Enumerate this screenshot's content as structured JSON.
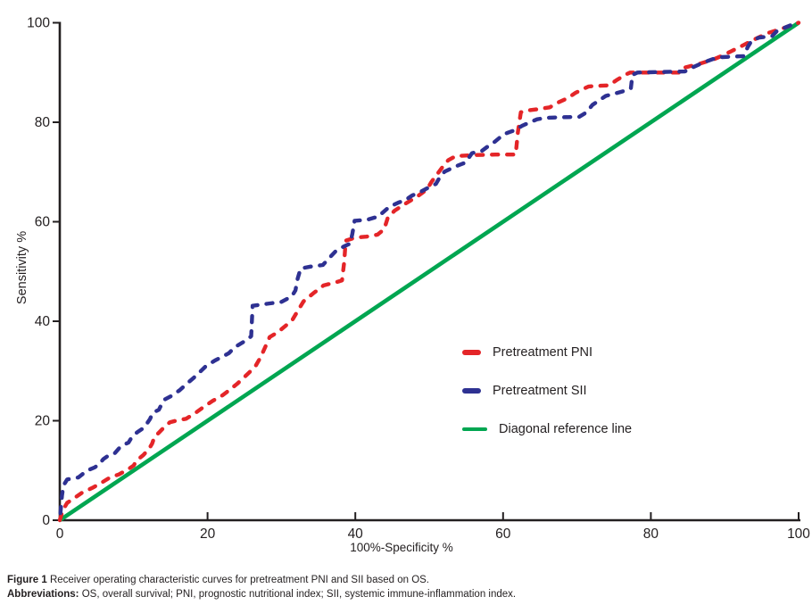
{
  "figure": {
    "caption": {
      "label": "Figure 1",
      "text": "Receiver operating characteristic curves for pretreatment PNI and SII based on OS."
    },
    "abbreviations": {
      "label": "Abbreviations:",
      "text": "OS, overall survival; PNI, prognostic nutritional index; SII, systemic immune-inflammation index."
    }
  },
  "chart_data": {
    "type": "line",
    "title": "",
    "xlabel": "100%-Specificity %",
    "ylabel": "Sensitivity %",
    "xlim": [
      0,
      100
    ],
    "ylim": [
      0,
      100
    ],
    "x_ticks": [
      0,
      20,
      40,
      60,
      80,
      100
    ],
    "y_ticks": [
      0,
      20,
      40,
      60,
      80,
      100
    ],
    "grid": false,
    "axis_color": "#231f20",
    "legend_position": "right-middle",
    "series": [
      {
        "name": "Pretreatment PNI",
        "color": "#e42528",
        "style": "dashed",
        "points": [
          [
            0,
            0
          ],
          [
            0.4,
            2
          ],
          [
            1,
            3.5
          ],
          [
            2,
            4.5
          ],
          [
            3,
            5.5
          ],
          [
            4.4,
            6.5
          ],
          [
            5.6,
            7.5
          ],
          [
            6.8,
            8.6
          ],
          [
            8,
            9.2
          ],
          [
            9.2,
            10.2
          ],
          [
            10,
            11
          ],
          [
            10.4,
            12
          ],
          [
            11.3,
            13.1
          ],
          [
            12.1,
            14.4
          ],
          [
            12.5,
            15.4
          ],
          [
            12.8,
            16.7
          ],
          [
            13.4,
            17.6
          ],
          [
            14,
            18.5
          ],
          [
            14.9,
            19.7
          ],
          [
            16,
            20.1
          ],
          [
            17.1,
            20.4
          ],
          [
            18.3,
            21.5
          ],
          [
            19.5,
            22.8
          ],
          [
            20.7,
            24
          ],
          [
            22,
            25.1
          ],
          [
            23,
            26.2
          ],
          [
            24,
            27.4
          ],
          [
            24.8,
            28.5
          ],
          [
            25.7,
            29.8
          ],
          [
            26.5,
            31
          ],
          [
            27.2,
            32.8
          ],
          [
            27.8,
            34.8
          ],
          [
            28.4,
            36.8
          ],
          [
            29.5,
            37.8
          ],
          [
            30.5,
            39
          ],
          [
            31.5,
            40.3
          ],
          [
            32.3,
            42.3
          ],
          [
            33,
            44
          ],
          [
            34.3,
            45.6
          ],
          [
            35.7,
            47.2
          ],
          [
            37.3,
            47.8
          ],
          [
            38.2,
            48.2
          ],
          [
            38.5,
            52
          ],
          [
            38.7,
            56.2
          ],
          [
            40,
            56.8
          ],
          [
            41.5,
            57
          ],
          [
            43,
            57.4
          ],
          [
            43.9,
            58.5
          ],
          [
            44.4,
            60.8
          ],
          [
            45.3,
            62.2
          ],
          [
            46.3,
            63.2
          ],
          [
            47.4,
            64.2
          ],
          [
            48.5,
            65.2
          ],
          [
            49.7,
            66.5
          ],
          [
            50.3,
            68
          ],
          [
            51.1,
            69.6
          ],
          [
            51.9,
            71.2
          ],
          [
            52.6,
            72.4
          ],
          [
            53.6,
            73.2
          ],
          [
            56,
            73.4
          ],
          [
            59,
            73.5
          ],
          [
            61.7,
            73.5
          ],
          [
            62,
            78
          ],
          [
            62.4,
            82
          ],
          [
            63.5,
            82.4
          ],
          [
            64.6,
            82.6
          ],
          [
            66.3,
            83
          ],
          [
            67.5,
            84
          ],
          [
            68.8,
            84.9
          ],
          [
            69.8,
            85.9
          ],
          [
            70.7,
            86.6
          ],
          [
            71.6,
            87.2
          ],
          [
            72.5,
            87.3
          ],
          [
            74.3,
            87.4
          ],
          [
            75.5,
            88.6
          ],
          [
            76.6,
            89.6
          ],
          [
            77.2,
            90
          ],
          [
            84,
            90
          ],
          [
            84.6,
            91
          ],
          [
            86.7,
            91.8
          ],
          [
            88.4,
            92.6
          ],
          [
            89.7,
            93.4
          ],
          [
            90.9,
            94.3
          ],
          [
            92,
            95.1
          ],
          [
            93.3,
            96.1
          ],
          [
            94.5,
            97
          ],
          [
            96,
            98
          ],
          [
            97.7,
            98.8
          ],
          [
            99,
            99.5
          ],
          [
            100,
            100
          ]
        ]
      },
      {
        "name": "Pretreatment SII",
        "color": "#2e3192",
        "style": "dashed",
        "points": [
          [
            0,
            0
          ],
          [
            0.3,
            5
          ],
          [
            0.5,
            7
          ],
          [
            1,
            8.2
          ],
          [
            2.5,
            8.6
          ],
          [
            3.7,
            10
          ],
          [
            4.7,
            10.6
          ],
          [
            5.3,
            11.2
          ],
          [
            5.9,
            12.3
          ],
          [
            6.6,
            13
          ],
          [
            7.4,
            13.4
          ],
          [
            8.1,
            14.6
          ],
          [
            8.7,
            15.2
          ],
          [
            9.3,
            15.6
          ],
          [
            9.8,
            16.8
          ],
          [
            10.5,
            17.7
          ],
          [
            11.4,
            18.6
          ],
          [
            12.2,
            20.3
          ],
          [
            12.6,
            21.6
          ],
          [
            13.4,
            22.2
          ],
          [
            14.1,
            24.2
          ],
          [
            15,
            24.9
          ],
          [
            16.2,
            26.1
          ],
          [
            17,
            27.2
          ],
          [
            18.1,
            28.6
          ],
          [
            19.1,
            30
          ],
          [
            19.8,
            31
          ],
          [
            21,
            32.1
          ],
          [
            22.3,
            33.1
          ],
          [
            22.9,
            33.6
          ],
          [
            23.7,
            34.8
          ],
          [
            24.6,
            35.6
          ],
          [
            25.4,
            36.3
          ],
          [
            25.9,
            37
          ],
          [
            26.1,
            43.1
          ],
          [
            28,
            43.5
          ],
          [
            30,
            43.9
          ],
          [
            31.4,
            45
          ],
          [
            31.9,
            46.2
          ],
          [
            32.2,
            48.6
          ],
          [
            32.6,
            50.6
          ],
          [
            34,
            51
          ],
          [
            35.6,
            51.3
          ],
          [
            36.4,
            52.6
          ],
          [
            37.3,
            54
          ],
          [
            38.4,
            55
          ],
          [
            39.3,
            55.6
          ],
          [
            39.6,
            57.6
          ],
          [
            39.9,
            60.2
          ],
          [
            41.6,
            60.4
          ],
          [
            43.2,
            61.1
          ],
          [
            43.6,
            61.7
          ],
          [
            44.6,
            63
          ],
          [
            45.9,
            63.9
          ],
          [
            46.8,
            64.4
          ],
          [
            47.7,
            65.3
          ],
          [
            48.7,
            65.9
          ],
          [
            49.7,
            66.7
          ],
          [
            50.9,
            67.6
          ],
          [
            51.5,
            69.1
          ],
          [
            52.1,
            70.1
          ],
          [
            53.7,
            71.2
          ],
          [
            54.9,
            71.9
          ],
          [
            55.8,
            73.8
          ],
          [
            57.1,
            74.2
          ],
          [
            57.9,
            75.1
          ],
          [
            58.9,
            76.1
          ],
          [
            60.1,
            77.6
          ],
          [
            61.6,
            78.4
          ],
          [
            62.6,
            79.3
          ],
          [
            63.8,
            80.1
          ],
          [
            64.6,
            80.6
          ],
          [
            65.8,
            80.9
          ],
          [
            68,
            81
          ],
          [
            70.3,
            81.1
          ],
          [
            71.3,
            82
          ],
          [
            72.1,
            83.5
          ],
          [
            73.9,
            85.3
          ],
          [
            75.2,
            85.8
          ],
          [
            76.4,
            86.3
          ],
          [
            77.3,
            86.8
          ],
          [
            77.5,
            89.5
          ],
          [
            78.2,
            90
          ],
          [
            84.6,
            90.2
          ],
          [
            85.6,
            91
          ],
          [
            87.1,
            92
          ],
          [
            88.6,
            92.8
          ],
          [
            89.6,
            93.1
          ],
          [
            92.6,
            93.3
          ],
          [
            93.1,
            95.1
          ],
          [
            93.6,
            96.3
          ],
          [
            94.6,
            97
          ],
          [
            96.4,
            97.3
          ],
          [
            97.1,
            98.4
          ],
          [
            98.1,
            99
          ],
          [
            99.1,
            99.6
          ],
          [
            100,
            100
          ]
        ]
      },
      {
        "name": "Diagonal reference line",
        "color": "#00a651",
        "style": "solid",
        "points": [
          [
            0,
            0
          ],
          [
            100,
            100
          ]
        ]
      }
    ]
  }
}
